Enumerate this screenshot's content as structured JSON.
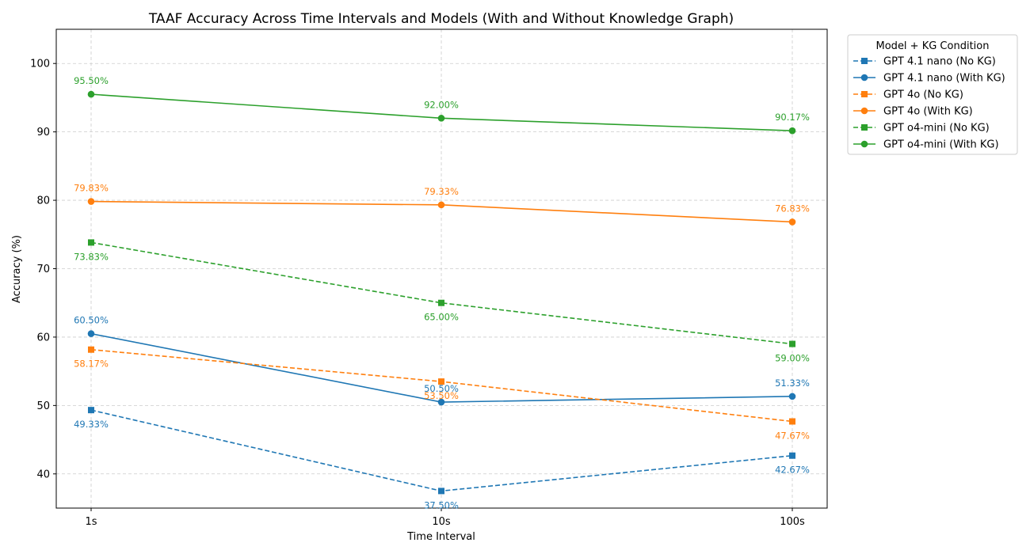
{
  "chart_data": {
    "type": "line",
    "title": "TAAF Accuracy Across Time Intervals and Models (With and Without Knowledge Graph)",
    "xlabel": "Time Interval",
    "ylabel": "Accuracy (%)",
    "categories": [
      "1s",
      "10s",
      "100s"
    ],
    "ylim": [
      35,
      105
    ],
    "yticks": [
      40,
      50,
      60,
      70,
      80,
      90,
      100
    ],
    "grid": true,
    "legend": {
      "title": "Model + KG Condition",
      "placement": "outside-top-right"
    },
    "series": [
      {
        "name": "GPT 4.1 nano (No KG)",
        "color": "#1f77b4",
        "dashed": true,
        "marker": "square",
        "values": [
          49.33,
          37.5,
          42.67
        ],
        "labels": [
          "49.33%",
          "37.50%",
          "42.67%"
        ],
        "label_pos": [
          "below",
          "below",
          "below"
        ]
      },
      {
        "name": "GPT 4.1 nano (With KG)",
        "color": "#1f77b4",
        "dashed": false,
        "marker": "circle",
        "values": [
          60.5,
          50.5,
          51.33
        ],
        "labels": [
          "60.50%",
          "50.50%",
          "51.33%"
        ],
        "label_pos": [
          "above",
          "above",
          "above"
        ]
      },
      {
        "name": "GPT 4o (No KG)",
        "color": "#ff7f0e",
        "dashed": true,
        "marker": "square",
        "values": [
          58.17,
          53.5,
          47.67
        ],
        "labels": [
          "58.17%",
          "53.50%",
          "47.67%"
        ],
        "label_pos": [
          "below",
          "below",
          "below"
        ]
      },
      {
        "name": "GPT 4o (With KG)",
        "color": "#ff7f0e",
        "dashed": false,
        "marker": "circle",
        "values": [
          79.83,
          79.33,
          76.83
        ],
        "labels": [
          "79.83%",
          "79.33%",
          "76.83%"
        ],
        "label_pos": [
          "above",
          "above",
          "above"
        ]
      },
      {
        "name": "GPT o4-mini (No KG)",
        "color": "#2ca02c",
        "dashed": true,
        "marker": "square",
        "values": [
          73.83,
          65.0,
          59.0
        ],
        "labels": [
          "73.83%",
          "65.00%",
          "59.00%"
        ],
        "label_pos": [
          "below",
          "below",
          "below"
        ]
      },
      {
        "name": "GPT o4-mini (With KG)",
        "color": "#2ca02c",
        "dashed": false,
        "marker": "circle",
        "values": [
          95.5,
          92.0,
          90.17
        ],
        "labels": [
          "95.50%",
          "92.00%",
          "90.17%"
        ],
        "label_pos": [
          "above",
          "above",
          "above"
        ]
      }
    ]
  }
}
